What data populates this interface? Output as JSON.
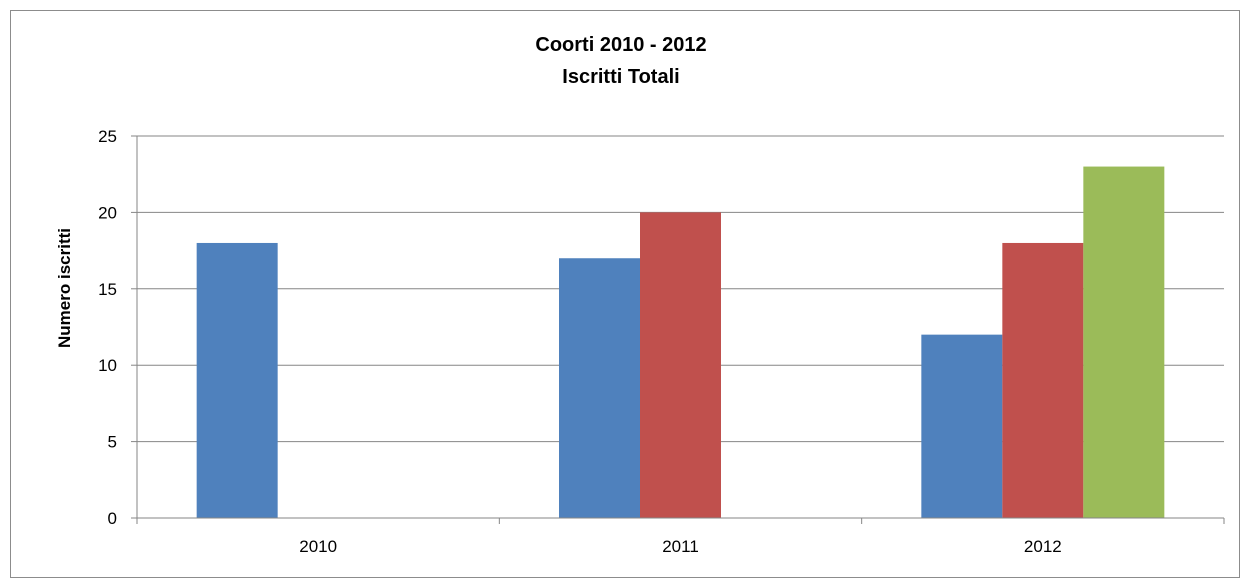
{
  "chart_data": {
    "type": "bar",
    "title": "Coorti 2010 - 2012",
    "subtitle": "Iscritti Totali",
    "xlabel": "",
    "ylabel": "Numero iscritti",
    "categories": [
      "2010",
      "2011",
      "2012"
    ],
    "ylim": [
      0,
      25
    ],
    "yticks": [
      "0",
      "5",
      "10",
      "15",
      "20",
      "25"
    ],
    "grid": true,
    "legend": "none",
    "series": [
      {
        "values": [
          18,
          17,
          12
        ],
        "color": "#4F81BD"
      },
      {
        "values": [
          null,
          20,
          18
        ],
        "color": "#C0504D"
      },
      {
        "values": [
          null,
          null,
          23
        ],
        "color": "#9BBB59"
      }
    ]
  }
}
